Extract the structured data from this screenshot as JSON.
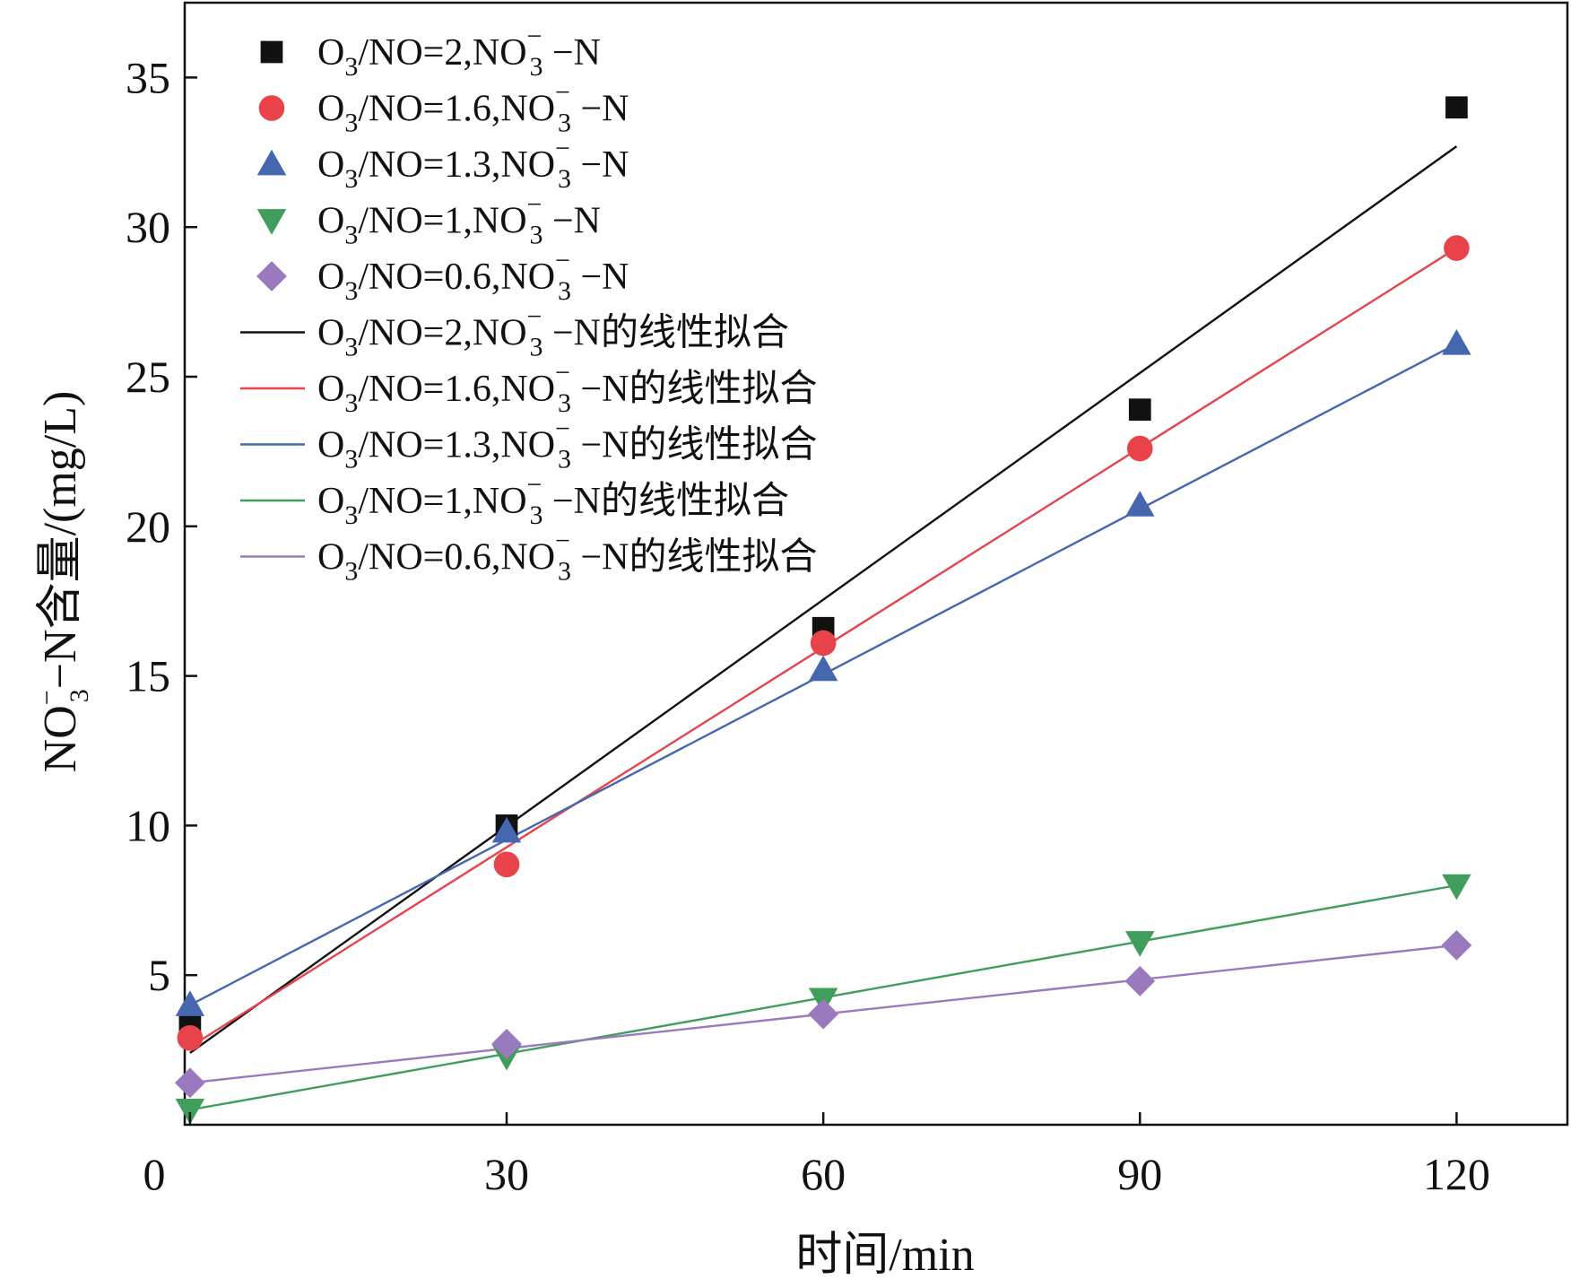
{
  "chart_data": {
    "type": "scatter",
    "title": "",
    "xlabel": "时间/min",
    "ylabel": {
      "pre": "NO",
      "sup": "−",
      "sub": "3",
      "post": "−N含量/(mg/L)"
    },
    "xlim": [
      -0.5,
      130.5
    ],
    "ylim": [
      0,
      37.5
    ],
    "xticks": [
      0,
      30,
      60,
      90,
      120
    ],
    "yticks": [
      5,
      10,
      15,
      20,
      25,
      30,
      35
    ],
    "grid": false,
    "legend_position": "top-left",
    "series": [
      {
        "name": "O3/NO=2,NO3−−N",
        "legend": {
          "pre": "O",
          "sub1": "3",
          "mid": "/NO=2,NO",
          "sup": "−",
          "sub2": "3",
          "post": " −N"
        },
        "marker": "square",
        "color": "#111111",
        "x": [
          0,
          30,
          60,
          90,
          120
        ],
        "y": [
          3.4,
          10.0,
          16.6,
          23.9,
          34.0
        ]
      },
      {
        "name": "O3/NO=1.6,NO3−−N",
        "legend": {
          "pre": "O",
          "sub1": "3",
          "mid": "/NO=1.6,NO",
          "sup": "−",
          "sub2": "3",
          "post": " −N"
        },
        "marker": "circle",
        "color": "#e8434a",
        "x": [
          0,
          30,
          60,
          90,
          120
        ],
        "y": [
          2.9,
          8.7,
          16.1,
          22.6,
          29.3
        ]
      },
      {
        "name": "O3/NO=1.3,NO3−−N",
        "legend": {
          "pre": "O",
          "sub1": "3",
          "mid": "/NO=1.3,NO",
          "sup": "−",
          "sub2": "3",
          "post": " −N"
        },
        "marker": "triangle-up",
        "color": "#4567b0",
        "x": [
          0,
          30,
          60,
          90,
          120
        ],
        "y": [
          4.0,
          9.8,
          15.2,
          20.7,
          26.1
        ]
      },
      {
        "name": "O3/NO=1,NO3−−N",
        "legend": {
          "pre": "O",
          "sub1": "3",
          "mid": "/NO=1,NO",
          "sup": "−",
          "sub2": "3",
          "post": " −N"
        },
        "marker": "triangle-down",
        "color": "#3f9e5a",
        "x": [
          0,
          30,
          60,
          90,
          120
        ],
        "y": [
          0.5,
          2.3,
          4.2,
          6.1,
          8.0
        ]
      },
      {
        "name": "O3/NO=0.6,NO3−−N",
        "legend": {
          "pre": "O",
          "sub1": "3",
          "mid": "/NO=0.6,NO",
          "sup": "−",
          "sub2": "3",
          "post": " −N"
        },
        "marker": "diamond",
        "color": "#9b79be",
        "x": [
          0,
          30,
          60,
          90,
          120
        ],
        "y": [
          1.4,
          2.7,
          3.7,
          4.8,
          6.0
        ]
      }
    ],
    "fits": [
      {
        "name": "O3/NO=2,NO3−−N的线性拟合",
        "legend": {
          "pre": "O",
          "sub1": "3",
          "mid": "/NO=2,NO",
          "sup": "−",
          "sub2": "3",
          "post": " −N的线性拟合"
        },
        "color": "#111111",
        "x": [
          0,
          120
        ],
        "y": [
          2.4,
          32.7
        ]
      },
      {
        "name": "O3/NO=1.6,NO3−−N的线性拟合",
        "legend": {
          "pre": "O",
          "sub1": "3",
          "mid": "/NO=1.6,NO",
          "sup": "−",
          "sub2": "3",
          "post": " −N的线性拟合"
        },
        "color": "#e8434a",
        "x": [
          0,
          120
        ],
        "y": [
          2.6,
          29.3
        ]
      },
      {
        "name": "O3/NO=1.3,NO3−−N的线性拟合",
        "legend": {
          "pre": "O",
          "sub1": "3",
          "mid": "/NO=1.3,NO",
          "sup": "−",
          "sub2": "3",
          "post": " −N的线性拟合"
        },
        "color": "#4567b0",
        "x": [
          0,
          120
        ],
        "y": [
          4.0,
          26.1
        ]
      },
      {
        "name": "O3/NO=1,NO3−−N的线性拟合",
        "legend": {
          "pre": "O",
          "sub1": "3",
          "mid": "/NO=1,NO",
          "sup": "−",
          "sub2": "3",
          "post": " −N的线性拟合"
        },
        "color": "#3f9e5a",
        "x": [
          0,
          120
        ],
        "y": [
          0.5,
          8.0
        ]
      },
      {
        "name": "O3/NO=0.6,NO3−−N的线性拟合",
        "legend": {
          "pre": "O",
          "sub1": "3",
          "mid": "/NO=0.6,NO",
          "sup": "−",
          "sub2": "3",
          "post": " −N的线性拟合"
        },
        "color": "#9b79be",
        "x": [
          0,
          120
        ],
        "y": [
          1.4,
          6.0
        ]
      }
    ]
  }
}
